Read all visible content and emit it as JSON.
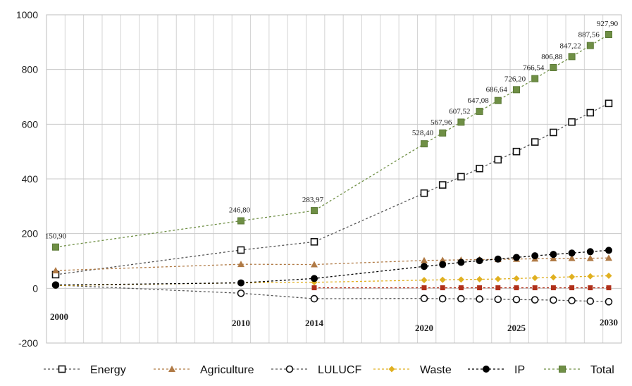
{
  "chart_data": {
    "type": "line",
    "title": "",
    "xlabel": "",
    "ylabel": "",
    "ylim": [
      -200,
      1000
    ],
    "yticks": [
      -200,
      0,
      200,
      400,
      600,
      800,
      1000
    ],
    "x": [
      2000,
      2010,
      2014,
      2020,
      2021,
      2022,
      2023,
      2024,
      2025,
      2026,
      2027,
      2028,
      2029,
      2030
    ],
    "xtick_labels": [
      {
        "x": 2000,
        "label": "2000"
      },
      {
        "x": 2010,
        "label": "2010"
      },
      {
        "x": 2014,
        "label": "2014"
      },
      {
        "x": 2020,
        "label": "2020"
      },
      {
        "x": 2025,
        "label": "2025"
      },
      {
        "x": 2030,
        "label": "2030"
      }
    ],
    "grid": true,
    "legend_position": "bottom",
    "series": [
      {
        "name": "Energy",
        "marker": "open-square",
        "color": "#222222",
        "values": [
          50,
          140,
          170,
          348,
          378,
          408,
          438,
          470,
          500,
          535,
          570,
          608,
          642,
          676
        ]
      },
      {
        "name": "Agriculture",
        "marker": "triangle",
        "color": "#b07a45",
        "values": [
          65,
          88,
          87,
          102,
          103,
          104,
          105,
          106,
          107,
          108,
          109,
          110,
          110,
          111
        ]
      },
      {
        "name": "LULUCF",
        "marker": "open-circle",
        "color": "#222222",
        "values": [
          12,
          -18,
          -38,
          -37,
          -38,
          -38,
          -39,
          -40,
          -41,
          -42,
          -43,
          -45,
          -47,
          -49
        ]
      },
      {
        "name": "Waste",
        "marker": "diamond",
        "color": "#e0b020",
        "values": [
          10,
          20,
          22,
          30,
          31,
          32,
          33,
          34,
          36,
          38,
          40,
          42,
          44,
          46
        ]
      },
      {
        "name": "IP",
        "marker": "filled-circle",
        "color": "#000000",
        "values": [
          12,
          20,
          36,
          80,
          87,
          95,
          101,
          107,
          113,
          119,
          124,
          129,
          134,
          139
        ]
      },
      {
        "name": "Total",
        "marker": "filled-square",
        "color": "#6f8f45",
        "values": [
          150.9,
          246.8,
          283.97,
          528.4,
          567.96,
          607.52,
          647.08,
          686.64,
          726.2,
          766.54,
          806.88,
          847.22,
          887.56,
          927.9
        ]
      },
      {
        "name": "",
        "marker": "small-square",
        "color": "#b0301a",
        "values": [
          null,
          null,
          2,
          2,
          2,
          2,
          2,
          2,
          2,
          2,
          2,
          2,
          2,
          2
        ]
      }
    ],
    "annotations": [
      {
        "x": 2000,
        "text": "150,90"
      },
      {
        "x": 2010,
        "text": "246,80"
      },
      {
        "x": 2014,
        "text": "283,97"
      },
      {
        "x": 2020,
        "text": "528,40"
      },
      {
        "x": 2021,
        "text": "567,96"
      },
      {
        "x": 2022,
        "text": "607,52"
      },
      {
        "x": 2023,
        "text": "647,08"
      },
      {
        "x": 2024,
        "text": "686,64"
      },
      {
        "x": 2025,
        "text": "726,20"
      },
      {
        "x": 2026,
        "text": "766,54"
      },
      {
        "x": 2027,
        "text": "806,88"
      },
      {
        "x": 2028,
        "text": "847,22"
      },
      {
        "x": 2029,
        "text": "887,56"
      },
      {
        "x": 2030,
        "text": "927,90"
      }
    ]
  }
}
